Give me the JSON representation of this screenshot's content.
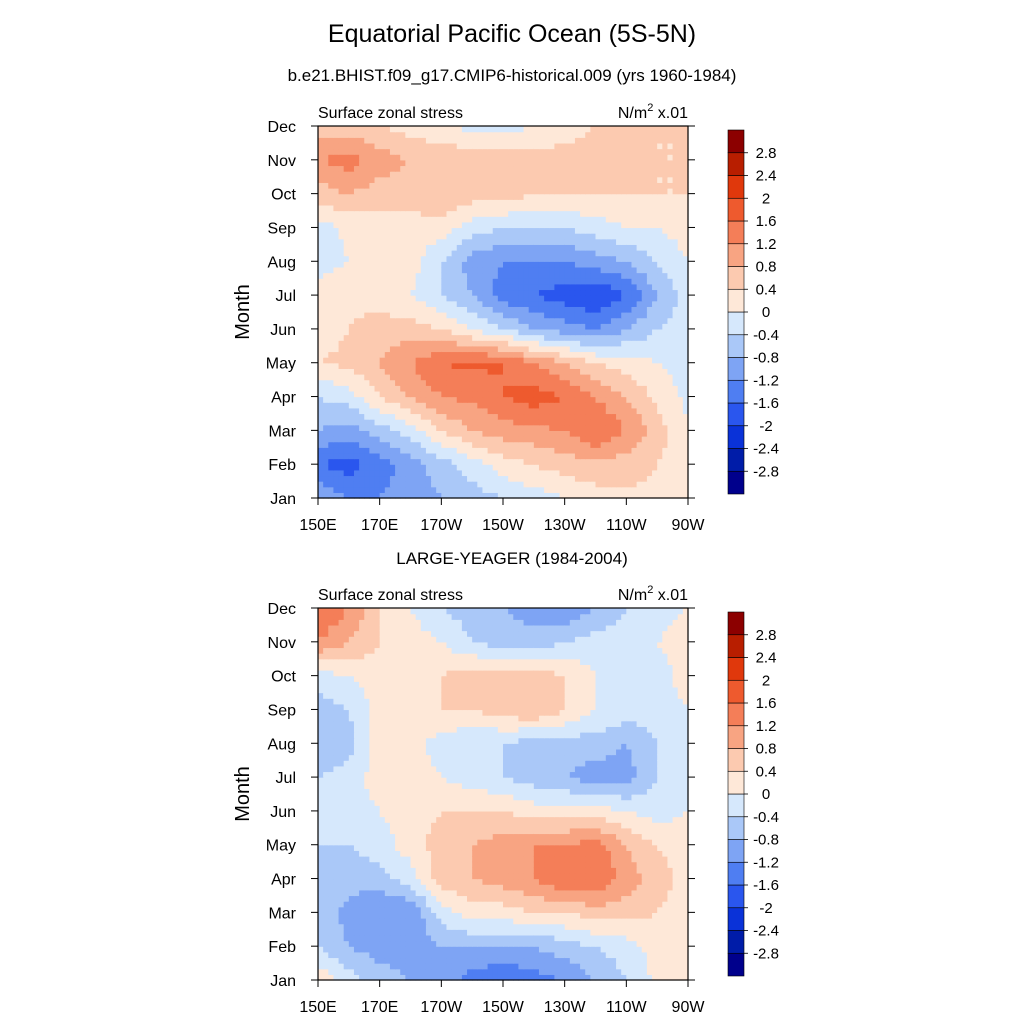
{
  "figure": {
    "title": "Equatorial Pacific Ocean (5S-5N)"
  },
  "palette": {
    "levels": [
      -2.8,
      -2.4,
      -2,
      -1.6,
      -1.2,
      -0.8,
      -0.4,
      0,
      0.4,
      0.8,
      1.2,
      1.6,
      2,
      2.4,
      2.8
    ],
    "level_labels": [
      "-2.8",
      "-2.4",
      "-2",
      "-1.6",
      "-1.2",
      "-0.8",
      "-0.4",
      "0",
      "0.4",
      "0.8",
      "1.2",
      "1.6",
      "2",
      "2.4",
      "2.8"
    ],
    "colors": [
      "#00008c",
      "#001ca8",
      "#0a32d8",
      "#2a56ee",
      "#4f7ef2",
      "#7ea4f4",
      "#aac8f8",
      "#d6e8fc",
      "#fee8d8",
      "#fccab0",
      "#f8a482",
      "#f47e58",
      "#ee5a2e",
      "#e0380c",
      "#b81e00",
      "#8c0000"
    ]
  },
  "chart_data": [
    {
      "type": "heatmap",
      "title": "b.e21.BHIST.f09_g17.CMIP6-historical.009 (yrs 1960-1984)",
      "left_label": "Surface zonal stress",
      "unit_base": "N/m",
      "unit_exp": "2",
      "unit_scale": "x.01",
      "ylabel": "Month",
      "x_ticks": [
        "150E",
        "170E",
        "170W",
        "150W",
        "130W",
        "110W",
        "90W"
      ],
      "x_range_deg_east": [
        150,
        270
      ],
      "y_ticks": [
        "Jan",
        "Feb",
        "Mar",
        "Apr",
        "May",
        "Jun",
        "Jul",
        "Aug",
        "Sep",
        "Oct",
        "Nov",
        "Dec"
      ],
      "x_grid": [
        150,
        160,
        170,
        180,
        190,
        200,
        210,
        220,
        230,
        240,
        250,
        260,
        270
      ],
      "values": [
        [
          -0.8,
          -1.2,
          -1.2,
          -1.0,
          -0.8,
          -0.6,
          -0.4,
          -0.2,
          0.0,
          0.2,
          0.3,
          0.3,
          0.2
        ],
        [
          -1.6,
          -1.8,
          -1.4,
          -1.0,
          -0.6,
          -0.2,
          0.2,
          0.4,
          0.6,
          0.7,
          0.6,
          0.4,
          0.2
        ],
        [
          -0.8,
          -1.0,
          -0.6,
          -0.2,
          0.4,
          0.8,
          1.0,
          1.1,
          1.2,
          1.6,
          1.2,
          0.6,
          0.0
        ],
        [
          -0.4,
          -0.2,
          0.4,
          0.8,
          1.2,
          1.3,
          1.6,
          1.8,
          1.6,
          1.2,
          0.8,
          0.3,
          -0.1
        ],
        [
          0.4,
          0.5,
          0.8,
          1.2,
          1.6,
          1.7,
          1.6,
          1.2,
          0.8,
          0.4,
          0.2,
          0.0,
          -0.2
        ],
        [
          0.2,
          0.4,
          0.6,
          0.6,
          0.4,
          0.0,
          -0.4,
          -0.8,
          -1.0,
          -1.2,
          -0.8,
          -0.4,
          -0.2
        ],
        [
          0.2,
          0.3,
          0.2,
          0.0,
          -0.4,
          -0.8,
          -1.4,
          -1.6,
          -1.8,
          -2.0,
          -1.6,
          -0.8,
          -0.2
        ],
        [
          -0.2,
          0.0,
          0.2,
          0.2,
          -0.4,
          -1.0,
          -1.2,
          -1.2,
          -1.2,
          -1.0,
          -0.8,
          -0.4,
          0.0
        ],
        [
          -0.2,
          0.1,
          0.2,
          0.2,
          0.2,
          -0.2,
          -0.4,
          -0.4,
          -0.4,
          -0.2,
          0.0,
          0.0,
          0.2
        ],
        [
          0.6,
          0.8,
          0.6,
          0.6,
          0.8,
          0.6,
          0.6,
          0.4,
          0.4,
          0.4,
          0.4,
          0.4,
          0.4
        ],
        [
          1.2,
          1.4,
          1.0,
          0.8,
          0.8,
          0.6,
          0.6,
          0.6,
          0.6,
          0.6,
          0.5,
          0.4,
          0.4
        ],
        [
          0.6,
          0.6,
          0.4,
          0.2,
          0.0,
          -0.1,
          -0.2,
          0.0,
          0.2,
          0.4,
          0.4,
          0.4,
          0.4
        ]
      ]
    },
    {
      "type": "heatmap",
      "title": "LARGE-YEAGER (1984-2004)",
      "left_label": "Surface zonal stress",
      "unit_base": "N/m",
      "unit_exp": "2",
      "unit_scale": "x.01",
      "ylabel": "Month",
      "x_ticks": [
        "150E",
        "170E",
        "170W",
        "150W",
        "130W",
        "110W",
        "90W"
      ],
      "x_range_deg_east": [
        150,
        270
      ],
      "y_ticks": [
        "Jan",
        "Feb",
        "Mar",
        "Apr",
        "May",
        "Jun",
        "Jul",
        "Aug",
        "Sep",
        "Oct",
        "Nov",
        "Dec"
      ],
      "x_grid": [
        150,
        160,
        170,
        180,
        190,
        200,
        210,
        220,
        230,
        240,
        250,
        260,
        270
      ],
      "values": [
        [
          0.3,
          -0.2,
          -0.6,
          -0.8,
          -1.0,
          -1.4,
          -1.6,
          -1.4,
          -1.2,
          -0.8,
          -0.4,
          0.1,
          0.2
        ],
        [
          -0.4,
          -0.8,
          -1.0,
          -1.0,
          -0.8,
          -0.8,
          -0.8,
          -0.8,
          -0.6,
          -0.4,
          -0.2,
          0.2,
          0.2
        ],
        [
          -0.4,
          -1.0,
          -1.2,
          -1.2,
          -0.2,
          0.2,
          0.2,
          0.4,
          0.4,
          0.6,
          0.6,
          0.4,
          0.2
        ],
        [
          -0.4,
          -0.6,
          -0.6,
          -0.2,
          0.6,
          0.8,
          1.0,
          1.2,
          1.6,
          1.6,
          1.0,
          0.6,
          0.2
        ],
        [
          -0.4,
          -0.4,
          -0.2,
          0.2,
          0.6,
          0.8,
          1.0,
          1.2,
          1.2,
          1.4,
          0.8,
          0.4,
          0.2
        ],
        [
          -0.2,
          -0.2,
          0.0,
          0.2,
          0.4,
          0.4,
          0.4,
          0.2,
          0.2,
          0.2,
          0.0,
          -0.2,
          0.0
        ],
        [
          -0.4,
          -0.2,
          0.2,
          0.2,
          0.0,
          -0.2,
          -0.4,
          -0.6,
          -0.8,
          -1.0,
          -1.0,
          -0.4,
          0.0
        ],
        [
          -0.8,
          -0.6,
          0.2,
          0.2,
          -0.2,
          -0.4,
          -0.4,
          -0.6,
          -0.6,
          -0.6,
          -0.8,
          -0.4,
          0.0
        ],
        [
          -0.6,
          -0.4,
          0.2,
          0.2,
          0.4,
          0.4,
          0.6,
          0.8,
          0.4,
          0.0,
          -0.2,
          -0.2,
          0.0
        ],
        [
          -0.2,
          0.0,
          0.2,
          0.2,
          0.4,
          0.6,
          0.6,
          0.6,
          0.4,
          0.0,
          -0.2,
          -0.2,
          0.2
        ],
        [
          1.2,
          0.8,
          0.4,
          0.2,
          0.0,
          -0.4,
          -0.6,
          -0.6,
          -0.4,
          -0.2,
          -0.2,
          0.0,
          0.2
        ],
        [
          1.6,
          1.2,
          0.4,
          0.0,
          -0.4,
          -0.6,
          -0.8,
          -1.0,
          -1.2,
          -0.8,
          -0.4,
          -0.2,
          0.0
        ]
      ]
    }
  ]
}
